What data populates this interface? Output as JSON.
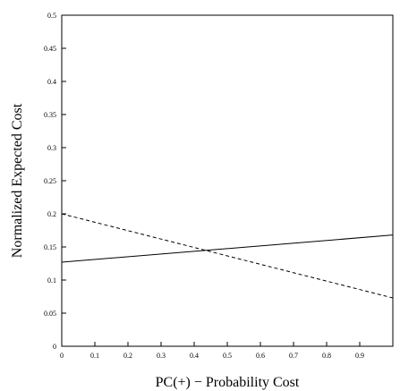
{
  "chart_data": {
    "type": "line",
    "title": "",
    "xlabel": "PC(+) − Probability Cost",
    "ylabel": "Normalized Expected Cost",
    "xlim": [
      0,
      1
    ],
    "ylim": [
      0,
      0.5
    ],
    "x_ticks": [
      "0",
      "0.1",
      "0.2",
      "0.3",
      "0.4",
      "0.5",
      "0.6",
      "0.7",
      "0.8",
      "0.9"
    ],
    "y_ticks": [
      "0",
      "0.05",
      "0.1",
      "0.15",
      "0.2",
      "0.25",
      "0.3",
      "0.35",
      "0.4",
      "0.45",
      "0.5"
    ],
    "grid": false,
    "series": [
      {
        "style": "solid",
        "color": "#000000",
        "x": [
          0,
          1
        ],
        "y": [
          0.127,
          0.168
        ]
      },
      {
        "style": "dashed",
        "color": "#000000",
        "x": [
          0,
          1
        ],
        "y": [
          0.2,
          0.073
        ]
      }
    ]
  }
}
